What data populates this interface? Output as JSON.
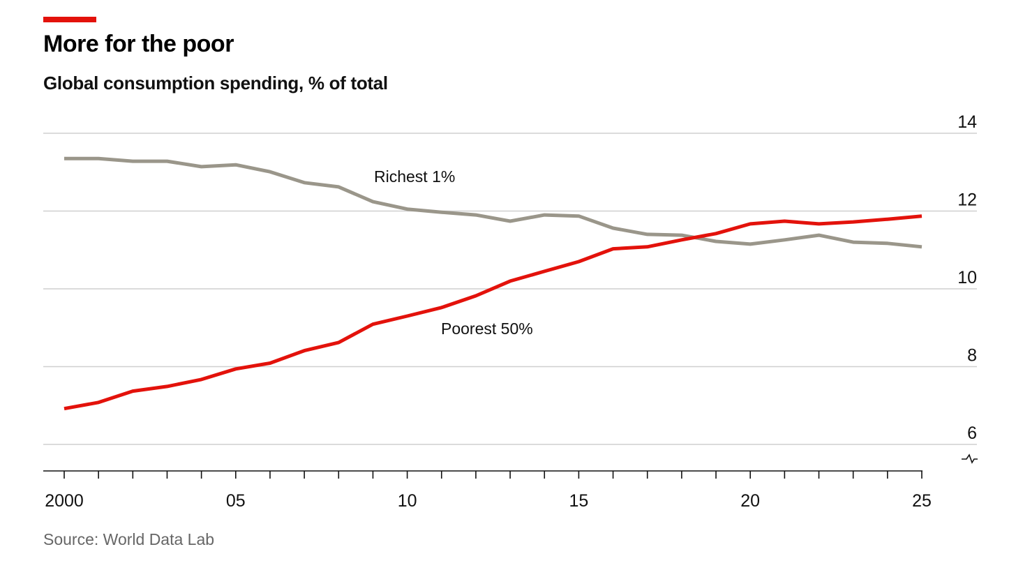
{
  "header": {
    "title": "More for the poor",
    "subtitle": "Global consumption spending, % of total",
    "accent_color": "#e3120b"
  },
  "footer": {
    "source": "Source: World Data Lab"
  },
  "chart_data": {
    "type": "line",
    "title": "More for the poor",
    "subtitle": "Global consumption spending, % of total",
    "xlabel": "",
    "ylabel": "",
    "x": [
      2000,
      2001,
      2002,
      2003,
      2004,
      2005,
      2006,
      2007,
      2008,
      2009,
      2010,
      2011,
      2012,
      2013,
      2014,
      2015,
      2016,
      2017,
      2018,
      2019,
      2020,
      2021,
      2022,
      2023,
      2024,
      2025
    ],
    "xlim": [
      2000,
      2025
    ],
    "ylim": [
      6,
      14
    ],
    "y_ticks": [
      14,
      12,
      10,
      8,
      6
    ],
    "y_tick_labels": [
      "14",
      "12",
      "10",
      "8",
      "6"
    ],
    "x_ticks": [
      2000,
      2005,
      2010,
      2015,
      2020,
      2025
    ],
    "x_tick_labels": [
      "2000",
      "05",
      "10",
      "15",
      "20",
      "25"
    ],
    "grid": true,
    "axis_break": true,
    "series": [
      {
        "name": "Richest 1%",
        "color": "#9a968a",
        "values": [
          13.35,
          13.35,
          13.28,
          13.28,
          13.14,
          13.19,
          13.01,
          12.73,
          12.62,
          12.24,
          12.05,
          11.97,
          11.9,
          11.74,
          11.9,
          11.87,
          11.56,
          11.4,
          11.38,
          11.22,
          11.15,
          11.26,
          11.38,
          11.2,
          11.17,
          11.08
        ]
      },
      {
        "name": "Poorest 50%",
        "color": "#e3120b",
        "values": [
          6.92,
          7.08,
          7.37,
          7.49,
          7.67,
          7.94,
          8.09,
          8.41,
          8.62,
          9.09,
          9.3,
          9.52,
          9.82,
          10.2,
          10.45,
          10.7,
          11.03,
          11.08,
          11.26,
          11.42,
          11.67,
          11.74,
          11.67,
          11.72,
          11.79,
          11.87
        ]
      }
    ]
  }
}
